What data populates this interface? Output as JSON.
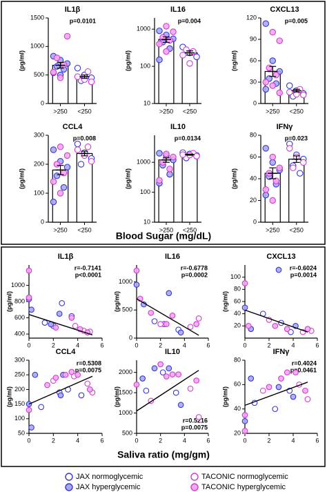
{
  "sections": [
    {
      "xlabel": "Blood Sugar (mg/dL)"
    },
    {
      "xlabel": "Saliva ratio (mg/gm)"
    }
  ],
  "legend": [
    {
      "name": "JAX normoglycemic",
      "color": "#3535d8",
      "fill": "#ffffff"
    },
    {
      "name": "JAX hyperglycemic",
      "color": "#3535d8",
      "fill": "#a8a8f2"
    },
    {
      "name": "TACONIC normoglycemic",
      "color": "#d23ad2",
      "fill": "#ffffff"
    },
    {
      "name": "TACONIC hyperglycemic",
      "color": "#d23ad2",
      "fill": "#f2a8f0"
    }
  ],
  "chart_data": [
    {
      "type": "bar",
      "title": "IL1β",
      "ylabel": "(pg/ml)",
      "annotations": [
        "p=0.0101"
      ],
      "annotation_corner": "upper right",
      "log": false,
      "ylim": [
        0,
        1500
      ],
      "yticks": [
        0,
        500,
        1000,
        1500
      ],
      "categories": [
        ">250",
        "<250"
      ],
      "values": [
        670,
        470
      ],
      "errors": [
        50,
        30
      ],
      "points": [
        [
          [],
          [
            830,
            760,
            700,
            650,
            600,
            540,
            500
          ],
          [],
          [
            1180,
            800,
            680,
            550,
            450
          ]
        ],
        [
          [
            620,
            500,
            450,
            400
          ],
          [],
          [
            560,
            470,
            420,
            380
          ],
          []
        ]
      ]
    },
    {
      "type": "bar",
      "title": "IL16",
      "ylabel": "(pg/ml)",
      "annotations": [
        "p=0.004"
      ],
      "annotation_corner": "upper right",
      "log": true,
      "ylim": [
        10,
        2000
      ],
      "yticks": [
        10,
        100,
        1000
      ],
      "categories": [
        ">250",
        "<250"
      ],
      "values": [
        530,
        230
      ],
      "errors": [
        90,
        30
      ],
      "points": [
        [
          [],
          [
            900,
            700,
            550,
            450,
            300,
            150
          ],
          [],
          [
            1200,
            850,
            600,
            500,
            400,
            250
          ]
        ],
        [
          [
            330,
            230,
            180
          ],
          [],
          [
            280,
            250,
            200,
            120
          ],
          []
        ]
      ]
    },
    {
      "type": "bar",
      "title": "CXCL13",
      "ylabel": "(ng/ml)",
      "annotations": [
        "p=0.005"
      ],
      "annotation_corner": "upper right",
      "log": false,
      "ylim": [
        0,
        120
      ],
      "yticks": [
        0,
        30,
        60,
        90,
        120
      ],
      "categories": [
        ">250",
        "<250"
      ],
      "values": [
        45,
        18
      ],
      "errors": [
        7,
        2
      ],
      "points": [
        [
          [],
          [
            112,
            60,
            45,
            35,
            28,
            20
          ],
          [],
          [
            100,
            88,
            50,
            40,
            30,
            25,
            15
          ]
        ],
        [
          [
            25,
            18,
            14,
            10
          ],
          [],
          [
            20,
            16,
            13,
            12
          ],
          []
        ]
      ]
    },
    {
      "type": "bar",
      "title": "CCL4",
      "ylabel": "(pg/ml)",
      "annotations": [
        "p=0.008"
      ],
      "annotation_corner": "upper right",
      "log": false,
      "ylim": [
        0,
        300
      ],
      "yticks": [
        0,
        100,
        200,
        300
      ],
      "categories": [
        ">250",
        "<250"
      ],
      "values": [
        180,
        237
      ],
      "errors": [
        16,
        8
      ],
      "points": [
        [
          [],
          [
            250,
            210,
            190,
            160,
            120,
            70
          ],
          [],
          [
            260,
            230,
            200,
            170,
            140,
            100
          ]
        ],
        [
          [
            270,
            240,
            220,
            200
          ],
          [],
          [
            260,
            250,
            230,
            210
          ],
          []
        ]
      ]
    },
    {
      "type": "bar",
      "title": "IL10",
      "ylabel": "(pg/ml)",
      "annotations": [
        "p=0.0134"
      ],
      "annotation_corner": "upper right",
      "log": true,
      "ylim": [
        10,
        8000
      ],
      "yticks": [
        10,
        100,
        1000
      ],
      "categories": [
        ">250",
        "<250"
      ],
      "values": [
        1200,
        1800
      ],
      "errors": [
        200,
        80
      ],
      "points": [
        [
          [],
          [
            2000,
            1700,
            1200,
            800,
            400,
            200
          ],
          [],
          [
            1900,
            1500,
            1000,
            600,
            250
          ]
        ],
        [
          [
            2100,
            1900,
            1700,
            1400
          ],
          [],
          [
            2000,
            1800,
            1750,
            1600
          ],
          []
        ]
      ]
    },
    {
      "type": "bar",
      "title": "IFNγ",
      "ylabel": "(pg/ml)",
      "annotations": [
        "p=0.023"
      ],
      "annotation_corner": "upper right",
      "log": false,
      "ylim": [
        0,
        80
      ],
      "yticks": [
        0,
        20,
        40,
        60,
        80
      ],
      "categories": [
        ">250",
        "<250"
      ],
      "values": [
        45,
        58
      ],
      "errors": [
        5,
        3
      ],
      "points": [
        [
          [],
          [
            68,
            55,
            48,
            42,
            35,
            25
          ],
          [],
          [
            60,
            50,
            45,
            38,
            30,
            20
          ]
        ],
        [
          [
            72,
            62,
            58,
            52,
            45
          ],
          [],
          [
            68,
            60,
            55,
            50
          ],
          []
        ]
      ]
    },
    {
      "type": "scatter",
      "title": "IL1β",
      "ylabel": "(pg/ml)",
      "annotations": [
        "r=-0.7141",
        "p<0.0001"
      ],
      "annotation_corner": "upper right",
      "xlim": [
        0,
        6
      ],
      "xticks": [
        0,
        2,
        4,
        6
      ],
      "ylim": [
        350,
        1250
      ],
      "yticks": [
        400,
        600,
        800,
        1000
      ],
      "series": [
        {
          "x": [
            1.3,
            2.0,
            2.7,
            3.5
          ],
          "values": [
            540,
            500,
            780,
            620
          ]
        },
        {
          "x": [
            0,
            0.2,
            1.8,
            2.5
          ],
          "values": [
            830,
            700,
            520,
            650
          ]
        },
        {
          "x": [
            3.8,
            4.5,
            5.0
          ],
          "values": [
            500,
            440,
            430
          ]
        },
        {
          "x": [
            0,
            0,
            2.2,
            3.5,
            4.2,
            4.8
          ],
          "values": [
            1180,
            850,
            480,
            600,
            460,
            420
          ]
        }
      ],
      "fit": {
        "x": [
          0,
          5.2
        ],
        "values": [
          640,
          390
        ]
      }
    },
    {
      "type": "scatter",
      "title": "IL16",
      "ylabel": "(pg/ml)",
      "annotations": [
        "r=-0.6778",
        "p=0.0002"
      ],
      "annotation_corner": "upper right",
      "xlim": [
        0,
        6
      ],
      "xticks": [
        0,
        2,
        4,
        6
      ],
      "ylim": [
        0,
        1300
      ],
      "yticks": [
        0,
        500,
        1000
      ],
      "series": [
        {
          "x": [
            1.5,
            2.3,
            3.5
          ],
          "values": [
            300,
            250,
            150
          ]
        },
        {
          "x": [
            0,
            0.6,
            2.7,
            3.7
          ],
          "values": [
            950,
            600,
            800,
            100
          ]
        },
        {
          "x": [
            2.0,
            4.5,
            5.2
          ],
          "values": [
            250,
            200,
            350
          ]
        },
        {
          "x": [
            0,
            0.3,
            1.2,
            2.5,
            3.0,
            5.0
          ],
          "values": [
            1200,
            700,
            450,
            250,
            400,
            250
          ]
        }
      ],
      "fit": {
        "x": [
          0,
          5.2
        ],
        "values": [
          700,
          50
        ]
      }
    },
    {
      "type": "scatter",
      "title": "CXCL13",
      "ylabel": "(ng/ml)",
      "annotations": [
        "r=-0.6024",
        "p=0.0014"
      ],
      "annotation_corner": "upper right",
      "xlim": [
        0,
        6
      ],
      "xticks": [
        0,
        2,
        4,
        6
      ],
      "ylim": [
        0,
        120
      ],
      "yticks": [
        20,
        40,
        60,
        80,
        100
      ],
      "series": [
        {
          "x": [
            1.5,
            3.0,
            3.8
          ],
          "values": [
            40,
            25,
            10
          ]
        },
        {
          "x": [
            0,
            0.5,
            2.8,
            4.2
          ],
          "values": [
            50,
            15,
            112,
            20
          ]
        },
        {
          "x": [
            2.0,
            4.8,
            5.5
          ],
          "values": [
            30,
            10,
            12
          ]
        },
        {
          "x": [
            0,
            0.3,
            2.5,
            3.5,
            5.2
          ],
          "values": [
            90,
            20,
            20,
            15,
            15
          ]
        }
      ],
      "fit": {
        "x": [
          0,
          5.2
        ],
        "values": [
          46,
          10
        ]
      }
    },
    {
      "type": "scatter",
      "title": "CCL4",
      "ylabel": "(pg/ml)",
      "annotations": [
        "r=0.5308",
        "p=0.0075"
      ],
      "annotation_corner": "upper right",
      "xlim": [
        0,
        6
      ],
      "xticks": [
        0,
        2,
        4,
        6
      ],
      "ylim": [
        50,
        300
      ],
      "yticks": [
        50,
        100,
        150,
        200,
        250,
        300
      ],
      "series": [
        {
          "x": [
            1.0,
            2.5,
            3.2,
            4.3
          ],
          "values": [
            140,
            190,
            200,
            180
          ]
        },
        {
          "x": [
            0,
            0.2,
            0.5,
            2.6,
            2.8
          ],
          "values": [
            150,
            70,
            250,
            180,
            250
          ]
        },
        {
          "x": [
            2.0,
            3.7,
            4.8,
            5.2
          ],
          "values": [
            230,
            245,
            220,
            190
          ]
        },
        {
          "x": [
            0,
            1.5,
            2.2,
            3.0,
            3.5,
            4.0,
            5.0
          ],
          "values": [
            130,
            215,
            240,
            250,
            260,
            250,
            200
          ]
        }
      ],
      "fit": {
        "x": [
          0,
          5.2
        ],
        "values": [
          150,
          245
        ]
      }
    },
    {
      "type": "scatter",
      "title": "IL10",
      "ylabel": "(pg/ml)",
      "annotations": [
        "r=0.5216",
        "p=0.0075"
      ],
      "annotation_corner": "lower right",
      "xlim": [
        0,
        6
      ],
      "xticks": [
        0,
        2,
        4,
        6
      ],
      "ylim": [
        500,
        2300
      ],
      "yticks": [
        500,
        1000,
        1500,
        2000
      ],
      "series": [
        {
          "x": [
            0.8,
            2.2,
            3.3
          ],
          "values": [
            1550,
            2000,
            1500
          ]
        },
        {
          "x": [
            0.5,
            1.5,
            2.7,
            3.7
          ],
          "values": [
            1850,
            2100,
            2100,
            1200
          ]
        },
        {
          "x": [
            1.2,
            4.5,
            5.2
          ],
          "values": [
            1300,
            1600,
            900
          ]
        },
        {
          "x": [
            0,
            2.0,
            2.5,
            3.0,
            3.5,
            5.0
          ],
          "values": [
            1700,
            2200,
            1900,
            1950,
            1950,
            1800
          ]
        }
      ],
      "fit": {
        "x": [
          0,
          5.2
        ],
        "values": [
          1050,
          2050
        ]
      }
    },
    {
      "type": "scatter",
      "title": "IFNγ",
      "ylabel": "(pg/ml)",
      "annotations": [
        "r=0.4024",
        "p=0.0461"
      ],
      "annotation_corner": "upper right",
      "xlim": [
        0,
        6
      ],
      "xticks": [
        0,
        2,
        4,
        6
      ],
      "ylim": [
        20,
        80
      ],
      "yticks": [
        20,
        40,
        60,
        80
      ],
      "series": [
        {
          "x": [
            0.8,
            2.5,
            3.7
          ],
          "values": [
            45,
            40,
            55
          ]
        },
        {
          "x": [
            0,
            0.5,
            2.8,
            4.0
          ],
          "values": [
            30,
            65,
            58,
            50
          ]
        },
        {
          "x": [
            1.5,
            4.5,
            5.2
          ],
          "values": [
            55,
            60,
            48
          ]
        },
        {
          "x": [
            0,
            0,
            2.0,
            3.0,
            3.5,
            4.2,
            5.0
          ],
          "values": [
            35,
            22,
            58,
            65,
            70,
            70,
            55
          ]
        }
      ],
      "fit": {
        "x": [
          0,
          5.2
        ],
        "values": [
          43,
          62
        ]
      }
    }
  ]
}
